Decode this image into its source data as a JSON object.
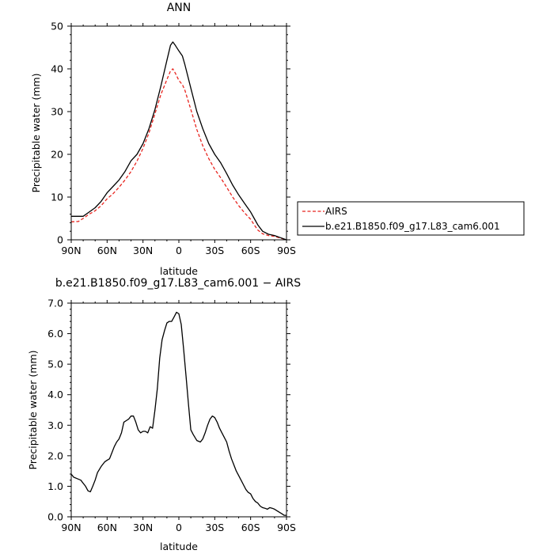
{
  "chart_data": [
    {
      "type": "line",
      "title": "ANN",
      "xlabel": "latitude",
      "ylabel": "Precipitable water (mm)",
      "xlim": [
        -90,
        90
      ],
      "ylim": [
        0,
        50
      ],
      "xticks": [
        -90,
        -60,
        -30,
        0,
        30,
        60,
        90
      ],
      "xtick_labels": [
        "90N",
        "60N",
        "30N",
        "0",
        "30S",
        "60S",
        "90S"
      ],
      "yticks": [
        0,
        10,
        20,
        30,
        40,
        50
      ],
      "ytick_labels": [
        "0",
        "10",
        "20",
        "30",
        "40",
        "50"
      ],
      "legend_position": "right",
      "grid": false,
      "series": [
        {
          "name": "AIRS",
          "color": "#e8251f",
          "dash": "dashed",
          "x": [
            -90,
            -84,
            -80,
            -75,
            -70,
            -65,
            -60,
            -55,
            -50,
            -45,
            -40,
            -35,
            -30,
            -25,
            -20,
            -15,
            -10,
            -7,
            -5,
            -3,
            0,
            3,
            5,
            10,
            15,
            20,
            25,
            30,
            35,
            40,
            45,
            50,
            55,
            60,
            63,
            66,
            70,
            75,
            80,
            85,
            90
          ],
          "values": [
            4.2,
            4.3,
            5.0,
            6.0,
            6.8,
            8.0,
            9.6,
            10.8,
            12.3,
            14.0,
            16.0,
            18.4,
            21.4,
            25.0,
            29.5,
            34.0,
            37.5,
            39.5,
            40.0,
            39.0,
            37.3,
            36.3,
            35.0,
            30.5,
            25.8,
            22.0,
            19.0,
            16.5,
            14.5,
            12.3,
            10.0,
            8.0,
            6.3,
            4.8,
            3.5,
            2.3,
            1.4,
            1.0,
            0.8,
            0.4,
            0.0
          ]
        },
        {
          "name": "b.e21.B1850.f09_g17.L83_cam6.001",
          "color": "#000000",
          "dash": "solid",
          "x": [
            -90,
            -84,
            -80,
            -75,
            -70,
            -65,
            -60,
            -55,
            -50,
            -45,
            -40,
            -35,
            -30,
            -25,
            -20,
            -15,
            -10,
            -7,
            -5,
            -3,
            0,
            3,
            5,
            10,
            15,
            20,
            25,
            30,
            35,
            40,
            45,
            50,
            55,
            60,
            63,
            66,
            70,
            75,
            80,
            85,
            90
          ],
          "values": [
            5.5,
            5.5,
            5.5,
            6.5,
            7.5,
            9.0,
            11.0,
            12.5,
            14.0,
            16.0,
            18.5,
            20.0,
            22.5,
            26.0,
            30.5,
            36.0,
            42.0,
            45.5,
            46.3,
            45.5,
            44.2,
            43.0,
            41.0,
            35.5,
            30.0,
            26.0,
            22.5,
            20.0,
            18.0,
            15.5,
            12.8,
            10.5,
            8.5,
            6.5,
            5.0,
            3.5,
            2.0,
            1.3,
            1.0,
            0.5,
            0.0
          ]
        }
      ]
    },
    {
      "type": "line",
      "title": "b.e21.B1850.f09_g17.L83_cam6.001 − AIRS",
      "xlabel": "latitude",
      "ylabel": "Precipitable water (mm)",
      "xlim": [
        -90,
        90
      ],
      "ylim": [
        0,
        7
      ],
      "xticks": [
        -90,
        -60,
        -30,
        0,
        30,
        60,
        90
      ],
      "xtick_labels": [
        "90N",
        "60N",
        "30N",
        "0",
        "30S",
        "60S",
        "90S"
      ],
      "yticks": [
        0,
        1,
        2,
        3,
        4,
        5,
        6,
        7
      ],
      "ytick_labels": [
        "0.0",
        "1.0",
        "2.0",
        "3.0",
        "4.0",
        "5.0",
        "6.0",
        "7.0"
      ],
      "grid": false,
      "series": [
        {
          "color": "#000000",
          "dash": "solid",
          "x": [
            -90,
            -88,
            -85,
            -82,
            -80,
            -78,
            -76,
            -74,
            -72,
            -70,
            -68,
            -65,
            -62,
            -60,
            -58,
            -56,
            -54,
            -52,
            -50,
            -48,
            -46,
            -44,
            -42,
            -40,
            -38,
            -36,
            -34,
            -32,
            -30,
            -28,
            -26,
            -24,
            -22,
            -20,
            -18,
            -16,
            -14,
            -12,
            -10,
            -8,
            -6,
            -4,
            -2,
            0,
            2,
            4,
            6,
            8,
            10,
            12,
            15,
            18,
            20,
            22,
            24,
            26,
            28,
            30,
            32,
            34,
            36,
            38,
            40,
            42,
            44,
            46,
            48,
            50,
            52,
            54,
            56,
            58,
            60,
            62,
            64,
            66,
            68,
            70,
            72,
            74,
            76,
            78,
            80,
            82,
            84,
            86,
            88,
            90
          ],
          "values": [
            1.4,
            1.3,
            1.25,
            1.2,
            1.1,
            1.0,
            0.85,
            0.82,
            1.0,
            1.2,
            1.45,
            1.65,
            1.8,
            1.85,
            1.9,
            2.1,
            2.3,
            2.45,
            2.55,
            2.75,
            3.1,
            3.15,
            3.2,
            3.3,
            3.3,
            3.1,
            2.85,
            2.75,
            2.8,
            2.8,
            2.75,
            2.95,
            2.9,
            3.5,
            4.2,
            5.2,
            5.8,
            6.1,
            6.35,
            6.4,
            6.4,
            6.55,
            6.7,
            6.65,
            6.3,
            5.5,
            4.6,
            3.7,
            2.85,
            2.7,
            2.5,
            2.45,
            2.55,
            2.75,
            3.0,
            3.2,
            3.3,
            3.25,
            3.1,
            2.9,
            2.75,
            2.6,
            2.45,
            2.15,
            1.9,
            1.7,
            1.5,
            1.35,
            1.2,
            1.05,
            0.9,
            0.8,
            0.75,
            0.6,
            0.5,
            0.45,
            0.35,
            0.3,
            0.28,
            0.25,
            0.3,
            0.28,
            0.25,
            0.2,
            0.15,
            0.1,
            0.05,
            0.05
          ]
        }
      ]
    }
  ]
}
